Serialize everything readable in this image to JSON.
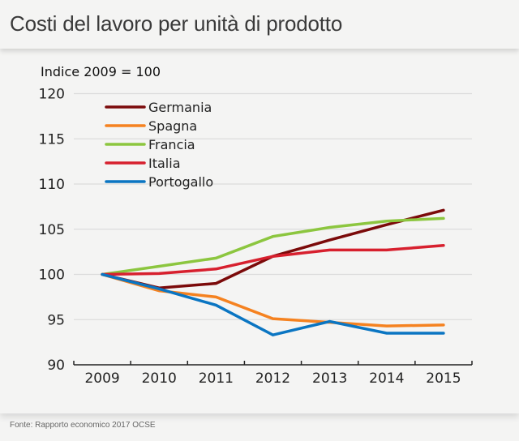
{
  "header": {
    "title": "Costi del lavoro per unità di prodotto"
  },
  "footer": {
    "source": "Fonte: Rapporto economico 2017 OCSE"
  },
  "chart_data": {
    "type": "line",
    "title": "Costi del lavoro per unità di prodotto",
    "ylabel": "Indice 2009 = 100",
    "xlabel": "",
    "categories": [
      "2009",
      "2010",
      "2011",
      "2012",
      "2013",
      "2014",
      "2015"
    ],
    "ylim": [
      90,
      120
    ],
    "yticks": [
      90,
      95,
      100,
      105,
      110,
      115,
      120
    ],
    "grid": true,
    "legend_position": "top-left",
    "series": [
      {
        "name": "Germania",
        "color": "#7b0a0a",
        "values": [
          100,
          98.5,
          99.0,
          102.0,
          103.8,
          105.5,
          107.1
        ]
      },
      {
        "name": "Spagna",
        "color": "#f58220",
        "values": [
          100,
          98.2,
          97.5,
          95.1,
          94.7,
          94.3,
          94.4
        ]
      },
      {
        "name": "Francia",
        "color": "#8cc63f",
        "values": [
          100,
          100.9,
          101.8,
          104.2,
          105.2,
          105.9,
          106.2
        ]
      },
      {
        "name": "Italia",
        "color": "#d7202e",
        "values": [
          100,
          100.1,
          100.6,
          102.0,
          102.7,
          102.7,
          103.2
        ]
      },
      {
        "name": "Portogallo",
        "color": "#0a75c2",
        "values": [
          100,
          98.4,
          96.6,
          93.3,
          94.8,
          93.5,
          93.5
        ]
      }
    ]
  }
}
